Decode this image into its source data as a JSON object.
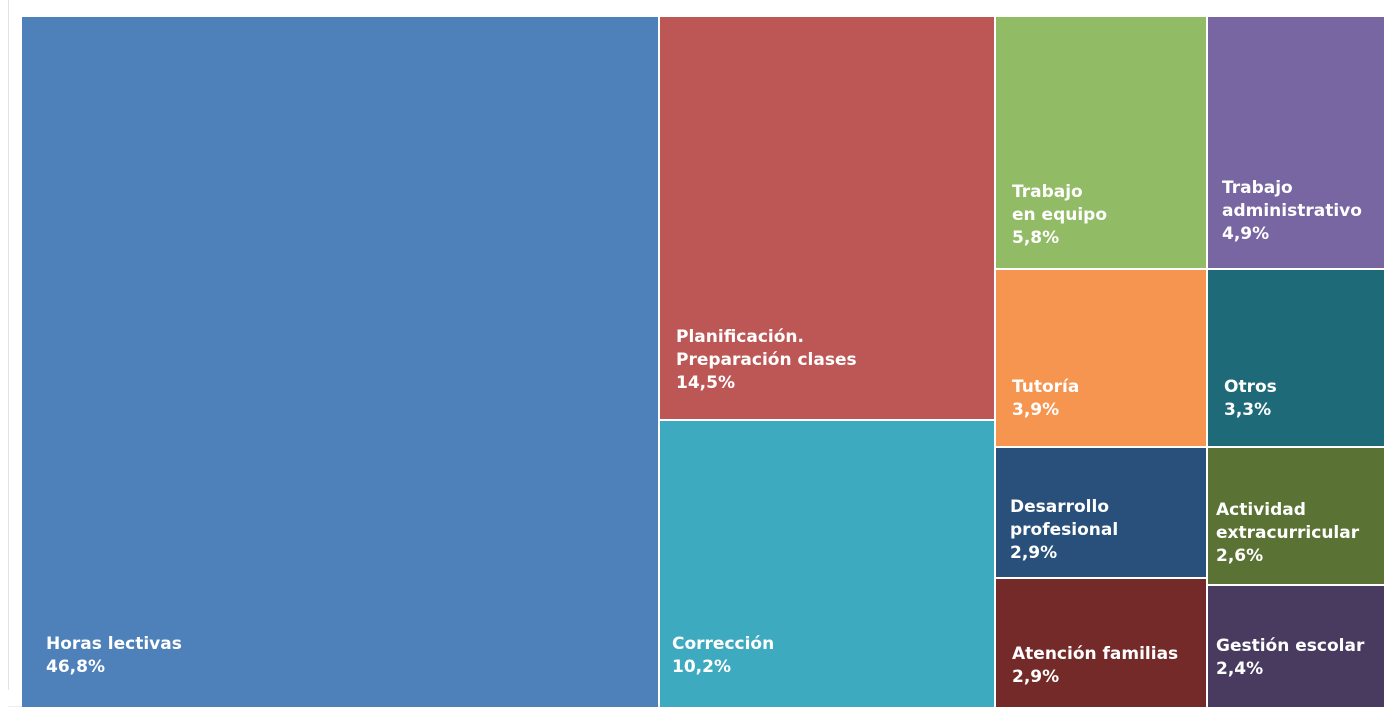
{
  "chart_data": {
    "type": "treemap",
    "title": "",
    "value_unit": "%",
    "items": [
      {
        "label": "Horas lectivas",
        "value": 46.8,
        "value_label": "46,8%",
        "color": "#4e80b9"
      },
      {
        "label": "Planificación.\nPreparación clases",
        "value": 14.5,
        "value_label": "14,5%",
        "color": "#bd5756"
      },
      {
        "label": "Corrección",
        "value": 10.2,
        "value_label": "10,2%",
        "color": "#3eaac0"
      },
      {
        "label": "Trabajo\nen equipo",
        "value": 5.8,
        "value_label": "5,8%",
        "color": "#91bb65"
      },
      {
        "label": "Trabajo\nadministrativo",
        "value": 4.9,
        "value_label": "4,9%",
        "color": "#7866a2"
      },
      {
        "label": "Tutoría",
        "value": 3.9,
        "value_label": "3,9%",
        "color": "#f5954f"
      },
      {
        "label": "Otros",
        "value": 3.3,
        "value_label": "3,3%",
        "color": "#1f6a78"
      },
      {
        "label": "Desarrollo\nprofesional",
        "value": 2.9,
        "value_label": "2,9%",
        "color": "#28507a"
      },
      {
        "label": "Actividad\nextracurricular",
        "value": 2.6,
        "value_label": "2,6%",
        "color": "#5b7235"
      },
      {
        "label": "Atención familias",
        "value": 2.9,
        "value_label": "2,9%",
        "color": "#742a29"
      },
      {
        "label": "Gestión escolar",
        "value": 2.4,
        "value_label": "2,4%",
        "color": "#493b60"
      }
    ]
  }
}
